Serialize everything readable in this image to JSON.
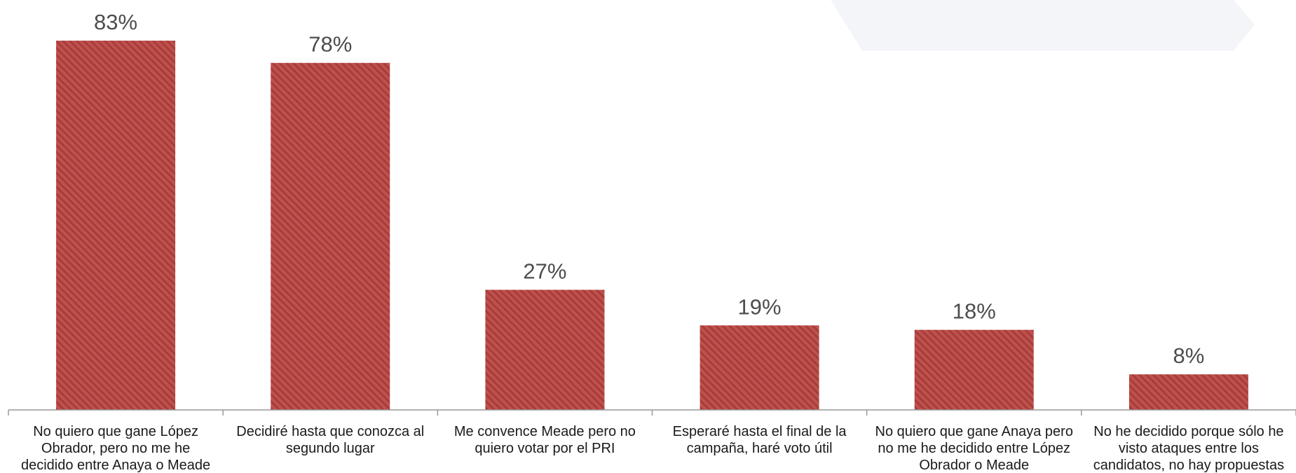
{
  "chart_data": {
    "type": "bar",
    "categories": [
      [
        "No quiero que gane López",
        "Obrador, pero no me he",
        "decidido entre Anaya o Meade"
      ],
      [
        "Decidiré hasta que conozca al",
        "segundo lugar"
      ],
      [
        "Me convence Meade pero no",
        "quiero votar por el PRI"
      ],
      [
        "Esperaré hasta el final de la",
        "campaña, haré voto útil"
      ],
      [
        "No quiero que gane Anaya pero",
        "no me he decidido entre López",
        "Obrador o Meade"
      ],
      [
        "No he decidido porque sólo he",
        "visto ataques entre los",
        "candidatos, no hay propuestas"
      ]
    ],
    "values": [
      83,
      78,
      27,
      19,
      18,
      8
    ],
    "data_labels": [
      "83%",
      "78%",
      "27%",
      "19%",
      "18%",
      "8%"
    ],
    "title": "",
    "xlabel": "",
    "ylabel": "",
    "ylim": [
      0,
      92
    ],
    "grid": false,
    "legend": "none",
    "colors": {
      "bar_fill": "#c0504d",
      "bar_stripe": "#a23c39",
      "axis": "#9a9a9a",
      "value_text": "#4d4d4d",
      "category_text": "#1a1a1a",
      "decoration": "#f4f5f8"
    }
  }
}
